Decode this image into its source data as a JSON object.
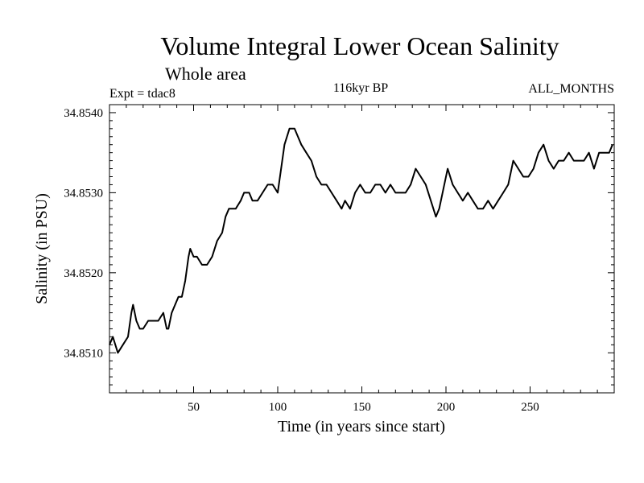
{
  "chart_data": {
    "type": "line",
    "title": "Volume Integral Lower Ocean Salinity",
    "subtitle": "Whole area",
    "experiment_label": "Expt = tdac8",
    "period_label": "116kyr BP",
    "months_label": "ALL_MONTHS",
    "xlabel": "Time (in years since start)",
    "ylabel": "Salinity (in PSU)",
    "xlim": [
      0,
      300
    ],
    "ylim": [
      34.8505,
      34.8541
    ],
    "x_ticks": [
      50,
      100,
      150,
      200,
      250
    ],
    "x_tick_labels": [
      "50",
      "100",
      "150",
      "200",
      "250"
    ],
    "y_ticks": [
      34.851,
      34.852,
      34.853,
      34.854
    ],
    "y_tick_labels": [
      "34.8510",
      "34.8520",
      "34.8530",
      "34.8540"
    ],
    "grid": false,
    "series": [
      {
        "name": "Lower ocean salinity",
        "color": "#000000",
        "x": [
          0,
          2,
          5,
          8,
          11,
          13,
          14,
          16,
          18,
          20,
          23,
          26,
          29,
          32,
          34,
          35,
          37,
          39,
          41,
          43,
          45,
          47,
          48,
          50,
          52,
          55,
          58,
          61,
          64,
          67,
          69,
          71,
          73,
          75,
          78,
          80,
          83,
          85,
          88,
          91,
          94,
          97,
          100,
          102,
          104,
          107,
          110,
          112,
          114,
          117,
          120,
          123,
          126,
          129,
          132,
          135,
          138,
          140,
          143,
          146,
          149,
          152,
          155,
          158,
          161,
          164,
          167,
          170,
          173,
          176,
          179,
          182,
          185,
          188,
          191,
          194,
          196,
          198,
          201,
          204,
          207,
          210,
          213,
          216,
          219,
          222,
          225,
          228,
          231,
          234,
          237,
          240,
          243,
          246,
          249,
          252,
          255,
          258,
          261,
          264,
          267,
          270,
          273,
          276,
          279,
          282,
          285,
          288,
          291,
          294,
          297,
          299
        ],
        "values": [
          34.8511,
          34.8512,
          34.851,
          34.8511,
          34.8512,
          34.8515,
          34.8516,
          34.8514,
          34.8513,
          34.8513,
          34.8514,
          34.8514,
          34.8514,
          34.8515,
          34.8513,
          34.8513,
          34.8515,
          34.8516,
          34.8517,
          34.8517,
          34.8519,
          34.8522,
          34.8523,
          34.8522,
          34.8522,
          34.8521,
          34.8521,
          34.8522,
          34.8524,
          34.8525,
          34.8527,
          34.8528,
          34.8528,
          34.8528,
          34.8529,
          34.853,
          34.853,
          34.8529,
          34.8529,
          34.853,
          34.8531,
          34.8531,
          34.853,
          34.8533,
          34.8536,
          34.8538,
          34.8538,
          34.8537,
          34.8536,
          34.8535,
          34.8534,
          34.8532,
          34.8531,
          34.8531,
          34.853,
          34.8529,
          34.8528,
          34.8529,
          34.8528,
          34.853,
          34.8531,
          34.853,
          34.853,
          34.8531,
          34.8531,
          34.853,
          34.8531,
          34.853,
          34.853,
          34.853,
          34.8531,
          34.8533,
          34.8532,
          34.8531,
          34.8529,
          34.8527,
          34.8528,
          34.853,
          34.8533,
          34.8531,
          34.853,
          34.8529,
          34.853,
          34.8529,
          34.8528,
          34.8528,
          34.8529,
          34.8528,
          34.8529,
          34.853,
          34.8531,
          34.8534,
          34.8533,
          34.8532,
          34.8532,
          34.8533,
          34.8535,
          34.8536,
          34.8534,
          34.8533,
          34.8534,
          34.8534,
          34.8535,
          34.8534,
          34.8534,
          34.8534,
          34.8535,
          34.8533,
          34.8535,
          34.8535,
          34.8535,
          34.8536
        ]
      }
    ]
  }
}
